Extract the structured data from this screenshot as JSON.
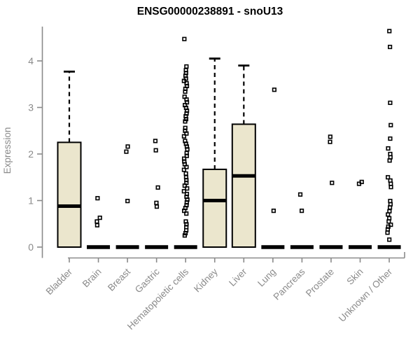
{
  "colors": {
    "background": "#ffffff",
    "box_fill": "#ebe6cd",
    "box_border": "#000000",
    "median": "#000000",
    "outlier": "#000000",
    "axis": "#8a8a8a",
    "axis_label": "#8a8a8a",
    "title": "#000000"
  },
  "chart_data": {
    "type": "boxplot",
    "title": "ENSG00000238891 - snoU13",
    "xlabel": "",
    "ylabel": "Expression",
    "ylim": [
      0,
      4.7
    ],
    "yticks": [
      0,
      1,
      2,
      3,
      4
    ],
    "grid": false,
    "legend": "none",
    "categories": [
      "Bladder",
      "Brain",
      "Breast",
      "Gastric",
      "Hematopoietic cells",
      "Kidney",
      "Liver",
      "Lung",
      "Pancreas",
      "Prostate",
      "Skin",
      "Unknown / Other"
    ],
    "series": [
      {
        "name": "Bladder",
        "min": 0,
        "q1": 0,
        "median": 0.88,
        "q3": 2.25,
        "max": 3.77,
        "outliers": []
      },
      {
        "name": "Brain",
        "min": 0,
        "q1": 0,
        "median": 0,
        "q3": 0,
        "max": 0,
        "outliers": [
          1.05,
          0.63,
          0.55,
          0.47
        ]
      },
      {
        "name": "Breast",
        "min": 0,
        "q1": 0,
        "median": 0,
        "q3": 0,
        "max": 0,
        "outliers": [
          2.16,
          2.05,
          0.99
        ]
      },
      {
        "name": "Gastric",
        "min": 0,
        "q1": 0,
        "median": 0,
        "q3": 0,
        "max": 0,
        "outliers": [
          2.28,
          2.08,
          1.28,
          0.95,
          0.87
        ]
      },
      {
        "name": "Hematopoietic cells",
        "min": 0,
        "q1": 0,
        "median": 0,
        "q3": 0,
        "max": 0,
        "outliers": [
          4.47,
          3.88,
          3.8,
          3.74,
          3.68,
          3.62,
          3.57,
          3.52,
          3.46,
          3.4,
          3.34,
          3.23,
          3.17,
          3.11,
          3.05,
          2.99,
          2.93,
          2.87,
          2.81,
          2.75,
          2.7,
          2.56,
          2.5,
          2.44,
          2.38,
          2.28,
          2.22,
          2.16,
          2.1,
          2.02,
          1.96,
          1.9,
          1.84,
          1.78,
          1.72,
          1.66,
          1.58,
          1.5,
          1.44,
          1.38,
          1.32,
          1.26,
          1.2,
          1.14,
          1.08,
          1.02,
          0.96,
          0.9,
          0.84,
          0.78,
          0.72,
          0.55,
          0.49,
          0.43,
          0.36,
          0.3,
          0.25
        ]
      },
      {
        "name": "Kidney",
        "min": 0,
        "q1": 0,
        "median": 1.0,
        "q3": 1.67,
        "max": 4.05,
        "outliers": []
      },
      {
        "name": "Liver",
        "min": 0,
        "q1": 0,
        "median": 1.53,
        "q3": 2.64,
        "max": 3.9,
        "outliers": []
      },
      {
        "name": "Lung",
        "min": 0,
        "q1": 0,
        "median": 0,
        "q3": 0,
        "max": 0,
        "outliers": [
          3.38,
          0.78
        ]
      },
      {
        "name": "Pancreas",
        "min": 0,
        "q1": 0,
        "median": 0,
        "q3": 0,
        "max": 0,
        "outliers": [
          1.13,
          0.78
        ]
      },
      {
        "name": "Prostate",
        "min": 0,
        "q1": 0,
        "median": 0,
        "q3": 0,
        "max": 0,
        "outliers": [
          2.37,
          2.26,
          1.38
        ]
      },
      {
        "name": "Skin",
        "min": 0,
        "q1": 0,
        "median": 0,
        "q3": 0,
        "max": 0,
        "outliers": [
          1.4,
          1.36
        ]
      },
      {
        "name": "Unknown / Other",
        "min": 0,
        "q1": 0,
        "median": 0,
        "q3": 0,
        "max": 0,
        "outliers": [
          4.64,
          4.3,
          3.1,
          2.62,
          2.33,
          2.12,
          2.0,
          1.93,
          1.86,
          1.5,
          1.43,
          1.36,
          1.29,
          0.99,
          0.92,
          0.85,
          0.77,
          0.7,
          0.62,
          0.55,
          0.48,
          0.44,
          0.38,
          0.31,
          0.16
        ]
      }
    ]
  }
}
